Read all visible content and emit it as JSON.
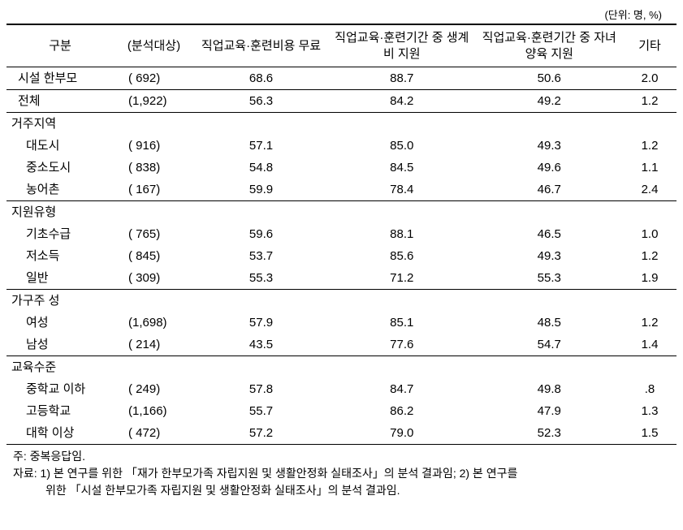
{
  "unit_label": "(단위: 명, %)",
  "columns": [
    "구분",
    "(분석대상)",
    "직업교육·훈련비용 무료",
    "직업교육·훈련기간 중 생계비 지원",
    "직업교육·훈련기간 중 자녀양육 지원",
    "기타"
  ],
  "top_rows": [
    {
      "label": "시설 한부모",
      "count": "(  692)",
      "c1": "68.6",
      "c2": "88.7",
      "c3": "50.6",
      "c4": "2.0"
    },
    {
      "label": "전체",
      "count": "(1,922)",
      "c1": "56.3",
      "c2": "84.2",
      "c3": "49.2",
      "c4": "1.2"
    }
  ],
  "groups": [
    {
      "header": "거주지역",
      "rows": [
        {
          "label": "대도시",
          "count": "(  916)",
          "c1": "57.1",
          "c2": "85.0",
          "c3": "49.3",
          "c4": "1.2"
        },
        {
          "label": "중소도시",
          "count": "(  838)",
          "c1": "54.8",
          "c2": "84.5",
          "c3": "49.6",
          "c4": "1.1"
        },
        {
          "label": "농어촌",
          "count": "(  167)",
          "c1": "59.9",
          "c2": "78.4",
          "c3": "46.7",
          "c4": "2.4"
        }
      ]
    },
    {
      "header": "지원유형",
      "rows": [
        {
          "label": "기초수급",
          "count": "(  765)",
          "c1": "59.6",
          "c2": "88.1",
          "c3": "46.5",
          "c4": "1.0"
        },
        {
          "label": "저소득",
          "count": "(  845)",
          "c1": "53.7",
          "c2": "85.6",
          "c3": "49.3",
          "c4": "1.2"
        },
        {
          "label": "일반",
          "count": "(  309)",
          "c1": "55.3",
          "c2": "71.2",
          "c3": "55.3",
          "c4": "1.9"
        }
      ]
    },
    {
      "header": "가구주 성",
      "rows": [
        {
          "label": "여성",
          "count": "(1,698)",
          "c1": "57.9",
          "c2": "85.1",
          "c3": "48.5",
          "c4": "1.2"
        },
        {
          "label": "남성",
          "count": "(  214)",
          "c1": "43.5",
          "c2": "77.6",
          "c3": "54.7",
          "c4": "1.4"
        }
      ]
    },
    {
      "header": "교육수준",
      "rows": [
        {
          "label": "중학교 이하",
          "count": "(  249)",
          "c1": "57.8",
          "c2": "84.7",
          "c3": "49.8",
          "c4": ".8"
        },
        {
          "label": "고등학교",
          "count": "(1,166)",
          "c1": "55.7",
          "c2": "86.2",
          "c3": "47.9",
          "c4": "1.3"
        },
        {
          "label": "대학 이상",
          "count": "(  472)",
          "c1": "57.2",
          "c2": "79.0",
          "c3": "52.3",
          "c4": "1.5"
        }
      ]
    }
  ],
  "note_label": "주:",
  "note_text": "중복응답임.",
  "source_label": "자료:",
  "source_text_1": "1) 본 연구를 위한 「재가 한부모가족 자립지원 및 생활안정화 실태조사」의 분석 결과임; 2) 본 연구를",
  "source_text_2": "위한 「시설 한부모가족 자립지원 및 생활안정화 실태조사」의 분석 결과임.",
  "col_widths": [
    "16%",
    "12%",
    "20%",
    "22%",
    "22%",
    "8%"
  ]
}
